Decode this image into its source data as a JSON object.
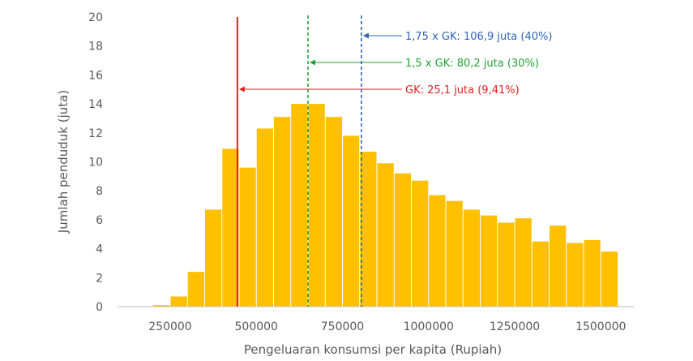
{
  "chart_data": {
    "type": "bar",
    "title": "",
    "xlabel": "Pengeluaran konsumsi per kapita (Rupiah)",
    "ylabel": "Jumlah penduduk (juta)",
    "ylim": [
      0,
      20
    ],
    "yticks": [
      "0",
      "2",
      "4",
      "6",
      "8",
      "10",
      "12",
      "14",
      "16",
      "18",
      "20"
    ],
    "xticks": [
      {
        "value": 250000,
        "label": "250000"
      },
      {
        "value": 500000,
        "label": "500000"
      },
      {
        "value": 750000,
        "label": "750000"
      },
      {
        "value": 1000000,
        "label": "1000000"
      },
      {
        "value": 1250000,
        "label": "1250000"
      },
      {
        "value": 1500000,
        "label": "1500000"
      }
    ],
    "bin_start": 150000,
    "bin_width": 50000,
    "values": [
      0.0,
      0.1,
      0.7,
      2.4,
      6.7,
      10.9,
      9.6,
      12.3,
      13.1,
      14.0,
      14.0,
      13.1,
      11.8,
      10.7,
      9.9,
      9.2,
      8.7,
      7.7,
      7.3,
      6.7,
      6.3,
      5.8,
      6.1,
      4.5,
      5.6,
      4.4,
      4.6,
      3.8
    ],
    "bar_color": "#FFC000",
    "reference_lines": [
      {
        "x": 445000,
        "label": "GK: 25,1 juta (9,41%)",
        "color": "#E02020",
        "style": "solid"
      },
      {
        "x": 650000,
        "label": "1,5 x GK: 80,2 juta (30%)",
        "color": "#22A033",
        "style": "dashed"
      },
      {
        "x": 805000,
        "label": "1,75 x GK: 106,9 juta (40%)",
        "color": "#2E64B8",
        "style": "dashed"
      }
    ]
  }
}
